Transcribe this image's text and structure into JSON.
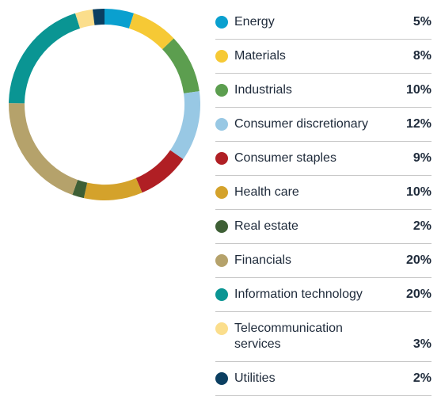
{
  "chart_data": {
    "type": "pie",
    "categories": [
      "Energy",
      "Materials",
      "Industrials",
      "Consumer discretionary",
      "Consumer staples",
      "Health care",
      "Real estate",
      "Financials",
      "Information technology",
      "Telecommunication services",
      "Utilities"
    ],
    "values": [
      5,
      8,
      10,
      12,
      9,
      10,
      2,
      20,
      20,
      3,
      2
    ],
    "value_labels": [
      "5%",
      "8%",
      "10%",
      "12%",
      "9%",
      "10%",
      "2%",
      "20%",
      "20%",
      "3%",
      "2%"
    ],
    "colors": [
      "#0aa0cf",
      "#f6c935",
      "#5c9e4f",
      "#98c8e4",
      "#b01f24",
      "#d4a22b",
      "#3e5f35",
      "#b5a26b",
      "#0a9593",
      "#fbde8c",
      "#0b3f61"
    ]
  }
}
